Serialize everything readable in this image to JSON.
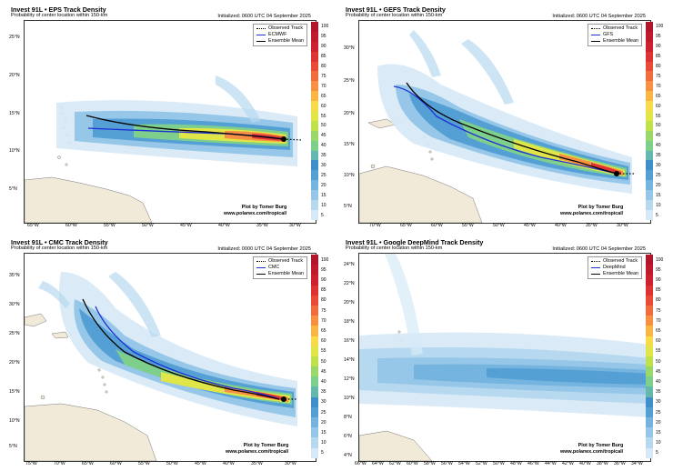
{
  "colors": {
    "ocean": "#ffffff",
    "land": "#f1ead9",
    "ensemble_mean": "#000000",
    "colorbar": [
      "#d6e9f6",
      "#b7d9f0",
      "#96c7e8",
      "#74b4df",
      "#54a0d5",
      "#3f8fca",
      "#64b8ae",
      "#7fcf8c",
      "#9ad86a",
      "#bfe24c",
      "#e0e548",
      "#f6dc4a",
      "#f9b645",
      "#f79042",
      "#f26b3c",
      "#ea4b37",
      "#de3233",
      "#cf2030",
      "#c01a2e",
      "#b0152c"
    ]
  },
  "colorbar_labels": [
    "100",
    "95",
    "90",
    "85",
    "80",
    "75",
    "70",
    "65",
    "60",
    "55",
    "50",
    "45",
    "40",
    "35",
    "30",
    "25",
    "20",
    "15",
    "10",
    "5"
  ],
  "panels": [
    {
      "title": "Invest 91L • EPS Track Density",
      "subtitle": "Probability of center location within 150-km",
      "initialized": "Initialized: 0600 UTC 04 September 2025",
      "legend": {
        "observed": "Observed Track",
        "model": "ECMWF",
        "mean": "Ensemble Mean"
      },
      "model_color": "#1f2fd6",
      "credit_line1": "Plot by Tomer Burg",
      "credit_line2": "www.polarwx.com/tropical/",
      "x_ticks": [
        "65°W",
        "60°W",
        "55°W",
        "50°W",
        "45°W",
        "40°W",
        "35°W",
        "30°W"
      ],
      "y_ticks": [
        "25°N",
        "20°N",
        "15°N",
        "10°N",
        "5°N"
      ]
    },
    {
      "title": "Invest 91L • GEFS Track Density",
      "subtitle": "Probability of center location within 150-km",
      "initialized": "Initialized: 0600 UTC 04 September 2025",
      "legend": {
        "observed": "Observed Track",
        "model": "GFS",
        "mean": "Ensemble Mean"
      },
      "model_color": "#1f2fd6",
      "credit_line1": "Plot by Tomer Burg",
      "credit_line2": "www.polarwx.com/tropical/",
      "x_ticks": [
        "70°W",
        "65°W",
        "60°W",
        "55°W",
        "50°W",
        "45°W",
        "40°W",
        "35°W",
        "30°W"
      ],
      "y_ticks": [
        "30°N",
        "25°N",
        "20°N",
        "15°N",
        "10°N",
        "5°N"
      ]
    },
    {
      "title": "Invest 91L • CMC Track Density",
      "subtitle": "Probability of center location within 150-km",
      "initialized": "Initialized: 0000 UTC 04 September 2025",
      "legend": {
        "observed": "Observed Track",
        "model": "CMC",
        "mean": "Ensemble Mean"
      },
      "model_color": "#1f2fd6",
      "credit_line1": "Plot by Tomer Burg",
      "credit_line2": "www.polarwx.com/tropical/",
      "x_ticks": [
        "75°W",
        "70°W",
        "65°W",
        "60°W",
        "55°W",
        "50°W",
        "45°W",
        "40°W",
        "35°W",
        "30°W"
      ],
      "y_ticks": [
        "35°N",
        "30°N",
        "25°N",
        "20°N",
        "15°N",
        "10°N",
        "5°N"
      ]
    },
    {
      "title": "Invest 91L • Google DeepMind Track Density",
      "subtitle": "Probability of center location within 150-km",
      "initialized": "Initialized: 0600 UTC 04 September 2025",
      "legend": {
        "observed": "Observed Track",
        "model": "DeepMind",
        "mean": "Ensemble Mean"
      },
      "model_color": "#1f2fd6",
      "credit_line1": "Plot by Tomer Burg",
      "credit_line2": "www.polarwx.com/tropical/",
      "x_ticks": [
        "66°W",
        "64°W",
        "62°W",
        "60°W",
        "58°W",
        "56°W",
        "54°W",
        "52°W",
        "50°W",
        "48°W",
        "46°W",
        "44°W",
        "42°W",
        "40°W",
        "38°W",
        "36°W",
        "34°W"
      ],
      "y_ticks": [
        "24°N",
        "22°N",
        "20°N",
        "18°N",
        "16°N",
        "14°N",
        "12°N",
        "10°N",
        "8°N",
        "6°N",
        "4°N"
      ]
    }
  ]
}
